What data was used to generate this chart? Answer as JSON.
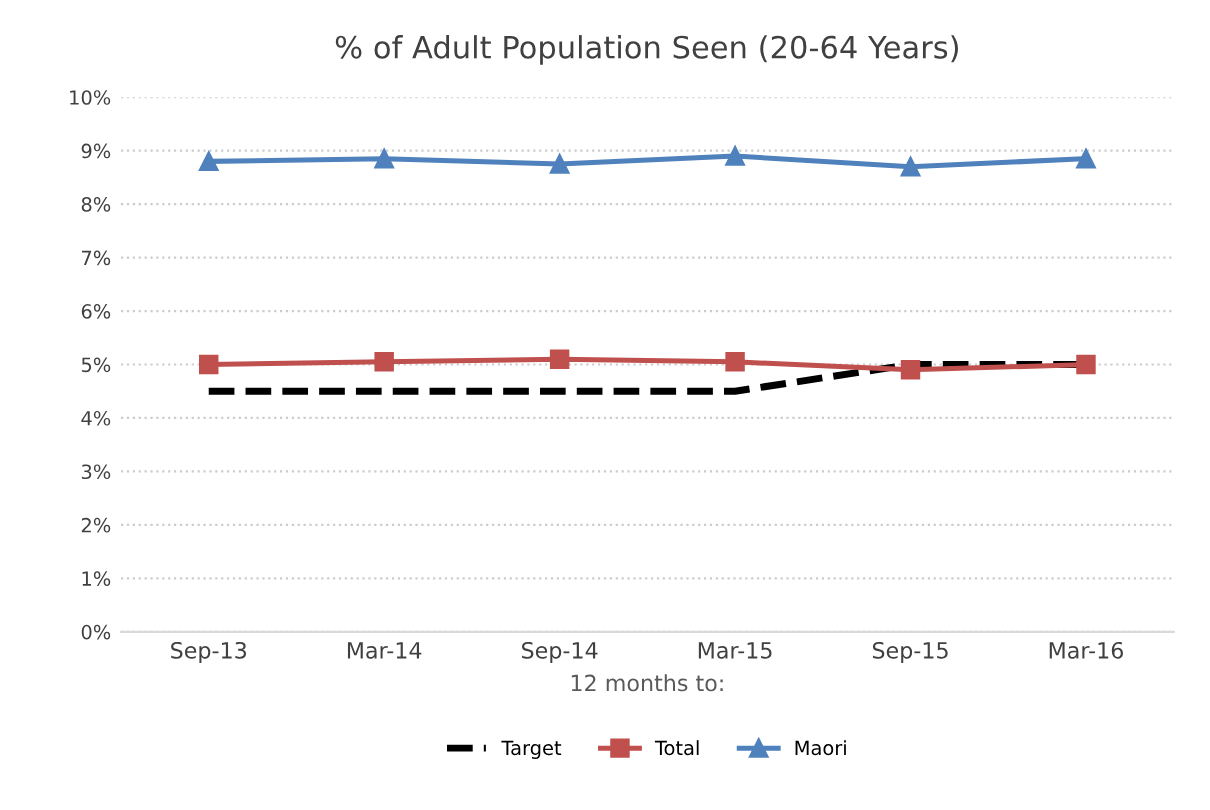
{
  "chart_data": {
    "type": "line",
    "title": "% of Adult Population Seen (20-64 Years)",
    "xlabel": "12 months to:",
    "categories": [
      "Sep-13",
      "Mar-14",
      "Sep-14",
      "Mar-15",
      "Sep-15",
      "Mar-16"
    ],
    "series": [
      {
        "name": "Target",
        "color": "#000000",
        "values": [
          4.5,
          4.5,
          4.5,
          4.5,
          5.0,
          5.0
        ],
        "marker": "none",
        "line_style": "dashed"
      },
      {
        "name": "Total",
        "color": "#c0504d",
        "values": [
          5.0,
          5.05,
          5.1,
          5.05,
          4.9,
          5.0
        ],
        "marker": "square",
        "line_style": "solid"
      },
      {
        "name": "Maori",
        "color": "#4f81bd",
        "values": [
          8.8,
          8.85,
          8.75,
          8.9,
          8.7,
          8.85
        ],
        "marker": "triangle",
        "line_style": "solid"
      }
    ],
    "ylim": [
      0,
      10
    ],
    "yticks": [
      {
        "value": 0,
        "label": "0%"
      },
      {
        "value": 1,
        "label": "1%"
      },
      {
        "value": 2,
        "label": "2%"
      },
      {
        "value": 3,
        "label": "3%"
      },
      {
        "value": 4,
        "label": "4%"
      },
      {
        "value": 5,
        "label": "5%"
      },
      {
        "value": 6,
        "label": "6%"
      },
      {
        "value": 7,
        "label": "7%"
      },
      {
        "value": 8,
        "label": "8%"
      },
      {
        "value": 9,
        "label": "9%"
      },
      {
        "value": 10,
        "label": "10%"
      }
    ],
    "grid": "y",
    "legend": "bottom"
  }
}
